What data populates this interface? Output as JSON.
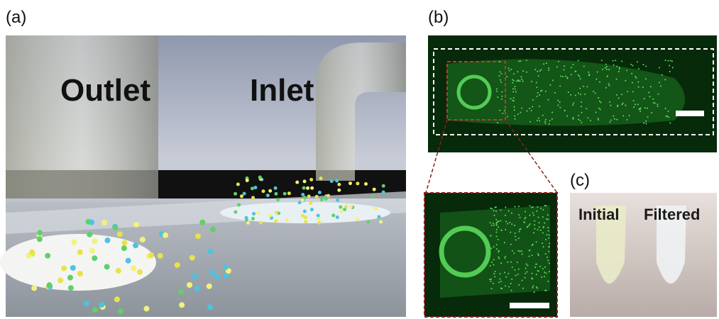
{
  "panels": [
    {
      "label": "(a)",
      "texts": [
        "Outlet",
        "Inlet"
      ]
    },
    {
      "label": "(b)"
    },
    {
      "label": "(c)",
      "texts": [
        "Initial",
        "Filtered"
      ]
    }
  ]
}
